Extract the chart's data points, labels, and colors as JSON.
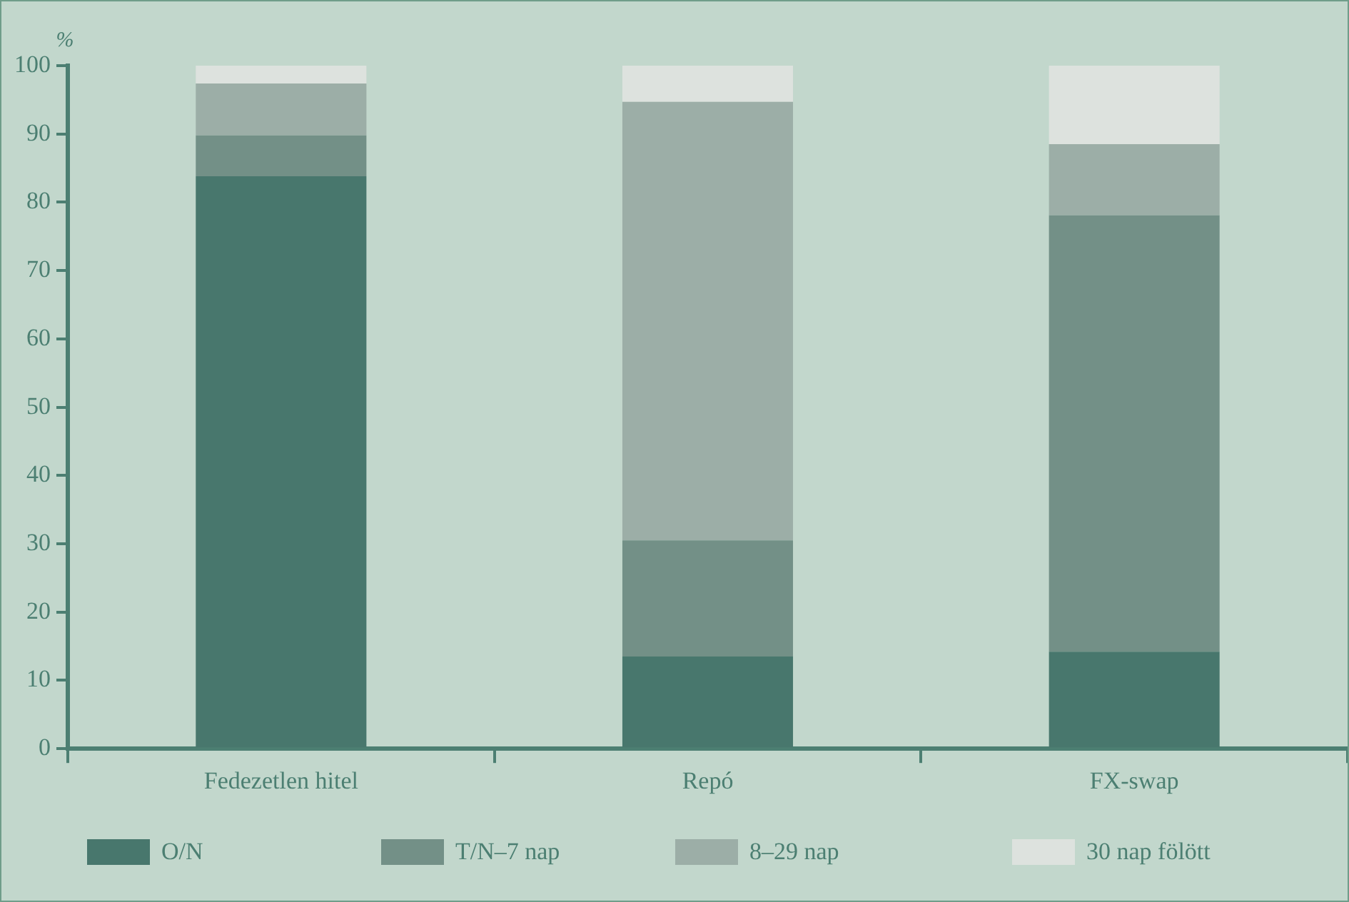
{
  "chart_data": {
    "type": "bar",
    "stacked": true,
    "ylabel": "%",
    "categories": [
      "Fedezetlen hitel",
      "Repó",
      "FX-swap"
    ],
    "series": [
      {
        "name": "O/N",
        "color": "#48776d",
        "values": [
          83.8,
          13.5,
          14.2
        ]
      },
      {
        "name": "T/N–7 nap",
        "color": "#739087",
        "values": [
          6,
          17,
          63.9
        ]
      },
      {
        "name": "8–29 nap",
        "color": "#9caea7",
        "values": [
          7.6,
          64.2,
          10.4
        ]
      },
      {
        "name": "30 nap fölött",
        "color": "#dde2de",
        "values": [
          2.6,
          5.3,
          11.5
        ]
      }
    ],
    "ylim": [
      0,
      100
    ],
    "yticks": [
      0,
      10,
      20,
      30,
      40,
      50,
      60,
      70,
      80,
      90,
      100
    ],
    "grid": false,
    "legend": "bottom"
  }
}
